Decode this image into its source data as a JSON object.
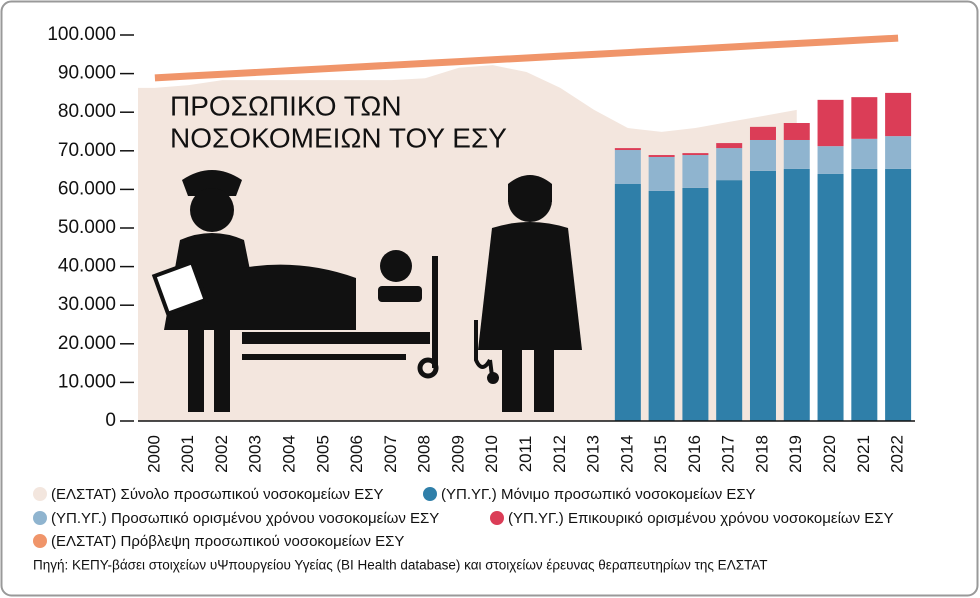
{
  "chart_data": {
    "type": "bar",
    "title_lines": [
      "ΠΡΟΣΩΠΙΚΟ ΤΩΝ",
      "ΝΟΣΟΚΟΜΕΙΩΝ ΤΟΥ ΕΣΥ"
    ],
    "categories": [
      "2000",
      "2001",
      "2002",
      "2003",
      "2004",
      "2005",
      "2006",
      "2007",
      "2008",
      "2009",
      "2010",
      "2011",
      "2012",
      "2013",
      "2014",
      "2015",
      "2016",
      "2017",
      "2018",
      "2019",
      "2020",
      "2021",
      "2022"
    ],
    "series": [
      {
        "name": "(ΕΛΣΤΑΤ) Σύνολο προσωπικού νοσοκομείων ΕΣΥ",
        "type": "area",
        "color": "#f3e6de",
        "values": [
          86300,
          87000,
          88300,
          88300,
          88300,
          88300,
          88300,
          88300,
          88800,
          91500,
          92200,
          90400,
          86300,
          80600,
          75900,
          74900,
          75900,
          77500,
          79000,
          80600,
          null,
          null,
          null
        ]
      },
      {
        "name": "(ΥΠ.ΥΓ.) Μόνιμο προσωπικό νοσοκομείων ΕΣΥ",
        "type": "bar",
        "color": "#2f7fa9",
        "values": [
          null,
          null,
          null,
          null,
          null,
          null,
          null,
          null,
          null,
          null,
          null,
          null,
          null,
          null,
          61400,
          59600,
          60400,
          62400,
          64800,
          65300,
          64000,
          65300,
          65300
        ]
      },
      {
        "name": "(ΥΠ.ΥΓ.) Προσωπικό ορισμένου χρόνου νοσοκομείων ΕΣΥ",
        "type": "bar",
        "color": "#8fb4cf",
        "values": [
          null,
          null,
          null,
          null,
          null,
          null,
          null,
          null,
          null,
          null,
          null,
          null,
          null,
          null,
          8800,
          8800,
          8500,
          8300,
          8000,
          7500,
          7200,
          7800,
          8500
        ]
      },
      {
        "name": "(ΥΠ.ΥΓ.) Επικουρικό ορισμένου χρόνου νοσοκομείων ΕΣΥ",
        "type": "bar",
        "color": "#db3d57",
        "values": [
          null,
          null,
          null,
          null,
          null,
          null,
          null,
          null,
          null,
          null,
          null,
          null,
          null,
          null,
          500,
          500,
          500,
          1300,
          3400,
          4400,
          12000,
          10800,
          11200
        ]
      },
      {
        "name": "(ΕΛΣΤΑΤ) Πρόβλεψη προσωπικού νοσοκομείων ΕΣΥ",
        "type": "line",
        "color": "#f0956a",
        "values": [
          88900,
          89370,
          89840,
          90300,
          90770,
          91240,
          91710,
          92180,
          92650,
          93110,
          93580,
          94050,
          94520,
          94990,
          95450,
          95920,
          96390,
          96860,
          97330,
          97790,
          98260,
          98730,
          99200
        ]
      }
    ],
    "ylim": [
      0,
      100000
    ],
    "yticks": [
      0,
      {
        "value": 10000,
        "label": "10.000"
      },
      {
        "value": 20000,
        "label": "20.000"
      },
      {
        "value": 30000,
        "label": "30.000"
      },
      {
        "value": 40000,
        "label": "40.000"
      },
      {
        "value": 50000,
        "label": "50.000"
      },
      {
        "value": 60000,
        "label": "60.000"
      },
      {
        "value": 70000,
        "label": "70.000"
      },
      {
        "value": 80000,
        "label": "80.000"
      },
      {
        "value": 90000,
        "label": "90.000"
      },
      {
        "value": 100000,
        "label": "100.000"
      }
    ],
    "source": "Πηγή: ΚΕΠΥ-βάσει στοιχείων υΨπουργείου Υγείας (BI Health database) και στοιχείων έρευνας θεραπευτηρίων της ΕΛΣΤΑΤ"
  }
}
